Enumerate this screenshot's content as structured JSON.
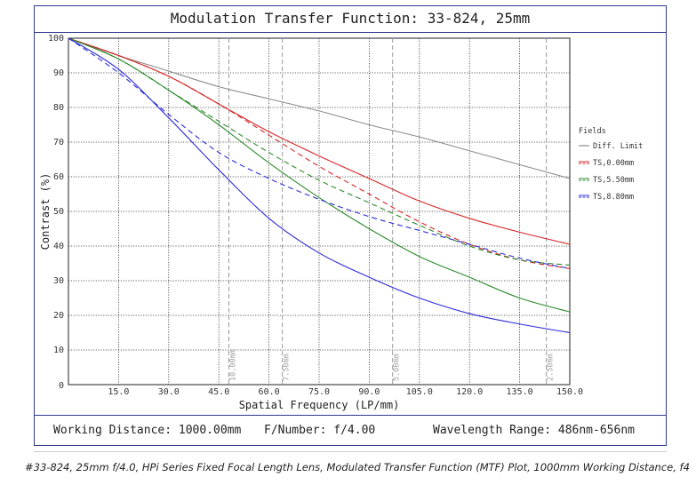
{
  "title": "Modulation Transfer Function: 33-824, 25mm",
  "footer": {
    "working_distance": "Working Distance: 1000.00mm",
    "f_number": "F/Number: f/4.00",
    "wavelength": "Wavelength Range: 486nm-656nm"
  },
  "caption": "#33-824, 25mm f/4.0, HPi Series Fixed Focal Length Lens, Modulated Transfer Function (MTF) Plot, 1000mm Working Distance, f4",
  "chart_data": {
    "type": "line",
    "xlabel": "Spatial Frequency (LP/mm)",
    "ylabel": "Contrast (%)",
    "xlim": [
      0,
      150
    ],
    "ylim": [
      0,
      100
    ],
    "x_ticks": [
      "15.0",
      "30.0",
      "45.0",
      "60.0",
      "75.0",
      "90.0",
      "105.0",
      "120.0",
      "135.0",
      "150.0"
    ],
    "y_ticks": [
      "0",
      "10",
      "20",
      "30",
      "40",
      "50",
      "60",
      "70",
      "80",
      "90",
      "100"
    ],
    "grid": true,
    "legend_title": "Fields",
    "legend_position": "right",
    "x": [
      0,
      15,
      30,
      45,
      60,
      75,
      90,
      105,
      120,
      135,
      150
    ],
    "series": [
      {
        "name": "Diff. Limit",
        "color": "#8c8c8c",
        "dash": "solid",
        "values": [
          100,
          95,
          90.5,
          86,
          82.5,
          79,
          75,
          71.5,
          67.5,
          63.5,
          59.5
        ]
      },
      {
        "name": "TS,0.00mm",
        "color": "#d62728",
        "dash": "both",
        "values": [
          100,
          95,
          89,
          81,
          73,
          66,
          59.5,
          53,
          48,
          44,
          40.5
        ]
      },
      {
        "name": "TS,5.50mm",
        "color": "#2e8b2e",
        "dash": "both",
        "values": [
          100,
          94,
          85,
          75,
          64,
          54,
          45,
          37,
          31,
          25,
          21
        ]
      },
      {
        "name": "TS,8.80mm",
        "color": "#2b2bd9",
        "dash": "both",
        "values": [
          100,
          91,
          77,
          62,
          48,
          38,
          31,
          25,
          20.5,
          17.5,
          15
        ]
      }
    ],
    "dashed_curves": {
      "TS,0.00mm": [
        100,
        95,
        89,
        81,
        72,
        63,
        55,
        47,
        40.5,
        36,
        33.5
      ],
      "TS,5.50mm": [
        100,
        94,
        85,
        76,
        67,
        59,
        52.5,
        46,
        40,
        36,
        34.5
      ],
      "TS,8.80mm": [
        100,
        90,
        78,
        67,
        59.5,
        53.5,
        48.5,
        44.5,
        40.5,
        36.5,
        33.5
      ]
    },
    "field_markers": [
      {
        "x": 48,
        "label": "10.00mm"
      },
      {
        "x": 64,
        "label": "7.50mm"
      },
      {
        "x": 97,
        "label": "5.00mm"
      },
      {
        "x": 143,
        "label": "2.50mm"
      }
    ]
  }
}
